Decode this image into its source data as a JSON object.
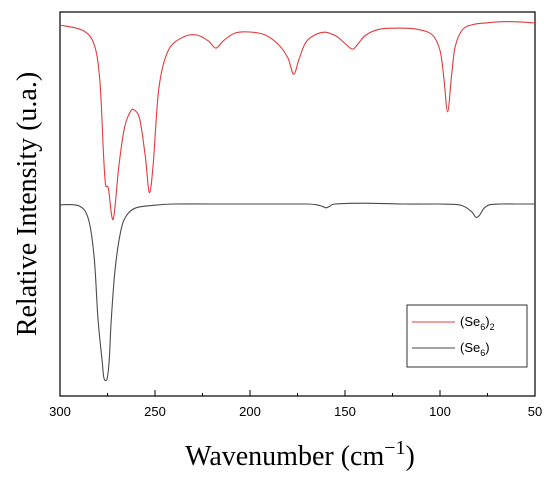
{
  "chart_data": {
    "type": "line",
    "title": "",
    "xlabel": "Wavenumber (cm",
    "xlabel_sup": "−1",
    "xlabel_close": ")",
    "ylabel": "Relative Intensity (u.a.)",
    "xlim": [
      300,
      50
    ],
    "x_reversed": true,
    "ylim": [
      0,
      1
    ],
    "x_ticks": [
      300,
      250,
      200,
      150,
      100,
      50
    ],
    "y_ticks_shown": false,
    "grid": false,
    "legend_position": "bottom-right",
    "series": [
      {
        "name": "(Se6)2",
        "legend_base": "(Se",
        "legend_sub1": "6",
        "legend_mid": ")",
        "legend_sub2": "2",
        "legend_end": "",
        "color": "#e03c3c",
        "x": [
          300,
          288,
          282,
          279,
          277,
          276,
          274.5,
          272,
          269,
          266,
          263,
          261,
          258,
          255,
          253,
          251,
          248,
          243,
          235,
          228,
          222,
          218,
          214,
          208,
          200,
          192,
          185,
          180,
          177,
          174,
          170,
          162,
          155,
          150,
          146,
          143,
          139,
          132,
          122,
          112,
          104,
          100,
          98,
          96,
          94,
          92,
          88,
          82,
          75,
          65,
          50
        ],
        "y": [
          0.966,
          0.952,
          0.915,
          0.82,
          0.62,
          0.55,
          0.54,
          0.46,
          0.6,
          0.7,
          0.74,
          0.745,
          0.72,
          0.62,
          0.53,
          0.6,
          0.8,
          0.9,
          0.935,
          0.94,
          0.925,
          0.906,
          0.925,
          0.945,
          0.948,
          0.94,
          0.915,
          0.88,
          0.838,
          0.88,
          0.925,
          0.947,
          0.938,
          0.918,
          0.903,
          0.918,
          0.94,
          0.955,
          0.958,
          0.955,
          0.94,
          0.9,
          0.83,
          0.74,
          0.83,
          0.91,
          0.955,
          0.968,
          0.972,
          0.975,
          0.972
        ]
      },
      {
        "name": "(Se6)",
        "legend_base": "(Se",
        "legend_sub1": "6",
        "legend_mid": ")",
        "legend_sub2": "",
        "legend_end": "",
        "color": "#4a4a4a",
        "x": [
          300,
          290,
          285,
          282,
          280,
          278,
          277,
          276,
          275,
          274,
          273,
          271,
          268,
          265,
          260,
          250,
          240,
          220,
          190,
          170,
          165,
          162,
          160,
          158,
          155,
          140,
          120,
          100,
          90,
          86,
          83,
          81,
          79,
          77,
          74,
          68,
          60,
          50
        ],
        "y": [
          0.498,
          0.495,
          0.46,
          0.36,
          0.2,
          0.1,
          0.05,
          0.04,
          0.05,
          0.1,
          0.2,
          0.33,
          0.43,
          0.47,
          0.49,
          0.497,
          0.5,
          0.5,
          0.5,
          0.5,
          0.498,
          0.494,
          0.49,
          0.494,
          0.5,
          0.502,
          0.5,
          0.5,
          0.498,
          0.49,
          0.478,
          0.465,
          0.472,
          0.488,
          0.498,
          0.5,
          0.5,
          0.5
        ]
      }
    ]
  }
}
